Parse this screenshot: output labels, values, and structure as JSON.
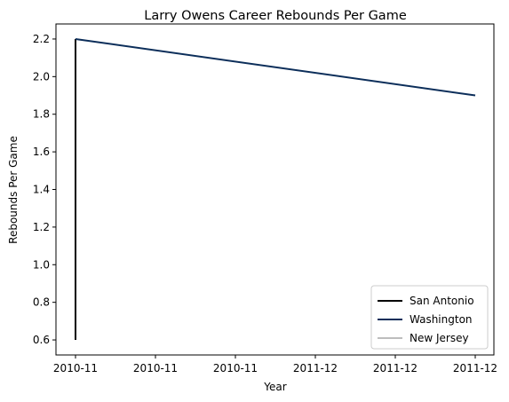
{
  "chart_data": {
    "type": "line",
    "title": "Larry Owens Career Rebounds Per Game",
    "xlabel": "Year",
    "ylabel": "Rebounds Per Game",
    "x_tick_labels": [
      "2010-11",
      "2010-11",
      "2010-11",
      "2011-12",
      "2011-12",
      "2011-12"
    ],
    "x_range": [
      0,
      1
    ],
    "ylim": [
      0.52,
      2.28
    ],
    "y_ticks": [
      0.6,
      0.8,
      1.0,
      1.2,
      1.4,
      1.6,
      1.8,
      2.0,
      2.2
    ],
    "y_tick_labels": [
      "0.6",
      "0.8",
      "1.0",
      "1.2",
      "1.4",
      "1.6",
      "1.8",
      "2.0",
      "2.2"
    ],
    "grid": false,
    "legend_position": "lower-right",
    "series": [
      {
        "name": "San Antonio",
        "color": "#000000",
        "points": [
          {
            "x": 0,
            "y": 0.6
          },
          {
            "x": 0,
            "y": 2.2
          }
        ]
      },
      {
        "name": "Washington",
        "color": "#0c2e5a",
        "points": [
          {
            "x": 0,
            "y": 2.2
          },
          {
            "x": 1,
            "y": 1.9
          }
        ]
      },
      {
        "name": "New Jersey",
        "color": "#bdbdbd",
        "points": []
      }
    ]
  }
}
